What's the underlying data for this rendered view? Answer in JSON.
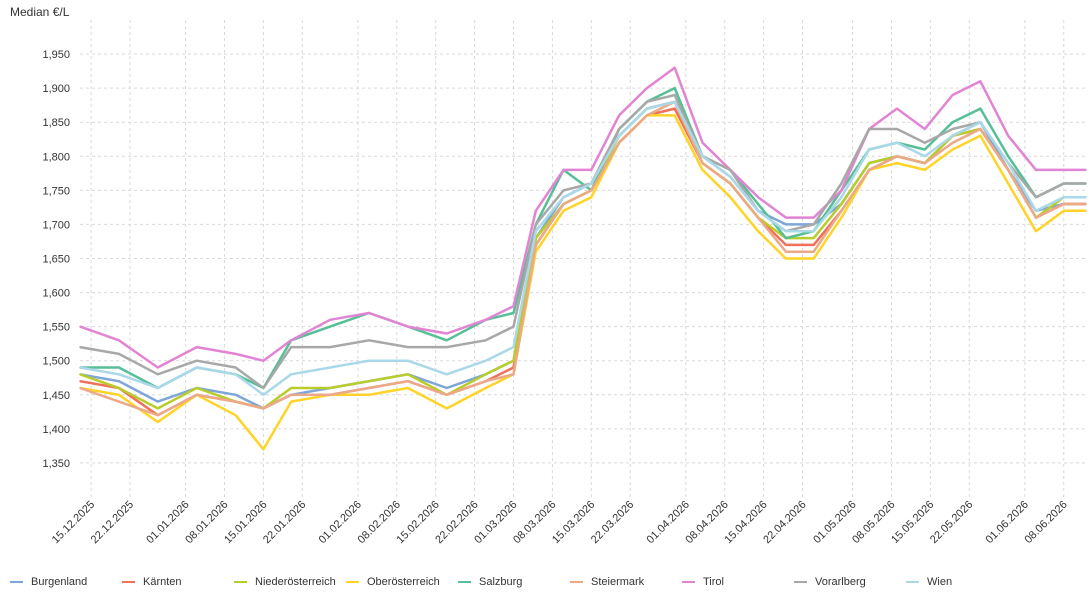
{
  "chart_data": {
    "type": "line",
    "ylabel": "Median €/L",
    "ylim": [
      1.3,
      2.0
    ],
    "yticks": [
      1.35,
      1.4,
      1.45,
      1.5,
      1.55,
      1.6,
      1.65,
      1.7,
      1.75,
      1.8,
      1.85,
      1.9,
      1.95
    ],
    "ytick_labels": [
      "1,350",
      "1,400",
      "1,450",
      "1,500",
      "1,550",
      "1,600",
      "1,650",
      "1,700",
      "1,750",
      "1,800",
      "1,850",
      "1,900",
      "1,950"
    ],
    "xlim": [
      "2025-12-13",
      "2026-06-12"
    ],
    "xticks": [
      "2025-12-15",
      "2025-12-22",
      "2026-01-01",
      "2026-01-08",
      "2026-01-15",
      "2026-01-22",
      "2026-02-01",
      "2026-02-08",
      "2026-02-15",
      "2026-02-22",
      "2026-03-01",
      "2026-03-08",
      "2026-03-15",
      "2026-03-22",
      "2026-04-01",
      "2026-04-08",
      "2026-04-15",
      "2026-04-22",
      "2026-05-01",
      "2026-05-08",
      "2026-05-15",
      "2026-05-22",
      "2026-06-01",
      "2026-06-08"
    ],
    "xtick_labels": [
      "15.12.2025",
      "22.12.2025",
      "01.01.2026",
      "08.01.2026",
      "15.01.2026",
      "22.01.2026",
      "01.02.2026",
      "08.02.2026",
      "15.02.2026",
      "22.02.2026",
      "01.03.2026",
      "08.03.2026",
      "15.03.2026",
      "22.03.2026",
      "01.04.2026",
      "08.04.2026",
      "15.04.2026",
      "22.04.2026",
      "01.05.2026",
      "08.05.2026",
      "15.05.2026",
      "22.05.2026",
      "01.06.2026",
      "08.06.2026"
    ],
    "grid": true,
    "legend_position": "bottom",
    "x": [
      "2025-12-13",
      "2025-12-20",
      "2025-12-27",
      "2026-01-03",
      "2026-01-10",
      "2026-01-15",
      "2026-01-20",
      "2026-01-27",
      "2026-02-03",
      "2026-02-10",
      "2026-02-17",
      "2026-02-24",
      "2026-03-01",
      "2026-03-05",
      "2026-03-10",
      "2026-03-15",
      "2026-03-20",
      "2026-03-25",
      "2026-03-30",
      "2026-04-04",
      "2026-04-09",
      "2026-04-14",
      "2026-04-19",
      "2026-04-24",
      "2026-04-29",
      "2026-05-04",
      "2026-05-09",
      "2026-05-14",
      "2026-05-19",
      "2026-05-24",
      "2026-05-29",
      "2026-06-03",
      "2026-06-08",
      "2026-06-12"
    ],
    "series": [
      {
        "name": "Burgenland",
        "color": "#7ea6d8",
        "values": [
          1.48,
          1.47,
          1.44,
          1.46,
          1.45,
          1.43,
          1.45,
          1.46,
          1.47,
          1.48,
          1.46,
          1.48,
          1.5,
          1.68,
          1.74,
          1.76,
          1.83,
          1.87,
          1.88,
          1.8,
          1.77,
          1.72,
          1.7,
          1.7,
          1.73,
          1.79,
          1.8,
          1.79,
          1.83,
          1.85,
          1.78,
          1.72,
          1.73,
          1.73
        ]
      },
      {
        "name": "Kärnten",
        "color": "#f0705a",
        "values": [
          1.47,
          1.46,
          1.42,
          1.45,
          1.44,
          1.43,
          1.45,
          1.45,
          1.46,
          1.47,
          1.45,
          1.47,
          1.49,
          1.67,
          1.73,
          1.75,
          1.82,
          1.86,
          1.87,
          1.79,
          1.76,
          1.71,
          1.67,
          1.67,
          1.72,
          1.78,
          1.8,
          1.79,
          1.83,
          1.84,
          1.78,
          1.71,
          1.73,
          1.73
        ]
      },
      {
        "name": "Niederösterreich",
        "color": "#b8cc2a",
        "values": [
          1.48,
          1.46,
          1.43,
          1.46,
          1.44,
          1.43,
          1.46,
          1.46,
          1.47,
          1.48,
          1.45,
          1.48,
          1.5,
          1.68,
          1.73,
          1.75,
          1.83,
          1.87,
          1.88,
          1.79,
          1.76,
          1.71,
          1.68,
          1.68,
          1.73,
          1.79,
          1.8,
          1.79,
          1.83,
          1.84,
          1.78,
          1.71,
          1.74,
          1.74
        ]
      },
      {
        "name": "Oberösterreich",
        "color": "#ffd327",
        "values": [
          1.46,
          1.45,
          1.41,
          1.45,
          1.42,
          1.37,
          1.44,
          1.45,
          1.45,
          1.46,
          1.43,
          1.46,
          1.48,
          1.66,
          1.72,
          1.74,
          1.82,
          1.86,
          1.86,
          1.78,
          1.74,
          1.69,
          1.65,
          1.65,
          1.71,
          1.78,
          1.79,
          1.78,
          1.81,
          1.83,
          1.76,
          1.69,
          1.72,
          1.72
        ]
      },
      {
        "name": "Salzburg",
        "color": "#55bf95",
        "values": [
          1.49,
          1.49,
          1.46,
          1.49,
          1.48,
          1.46,
          1.53,
          1.55,
          1.57,
          1.55,
          1.53,
          1.56,
          1.57,
          1.7,
          1.78,
          1.75,
          1.84,
          1.88,
          1.9,
          1.8,
          1.78,
          1.73,
          1.68,
          1.69,
          1.75,
          1.81,
          1.82,
          1.81,
          1.85,
          1.87,
          1.8,
          1.74,
          1.76,
          1.76
        ]
      },
      {
        "name": "Steiermark",
        "color": "#eba987",
        "values": [
          1.46,
          1.44,
          1.42,
          1.45,
          1.44,
          1.43,
          1.45,
          1.45,
          1.46,
          1.47,
          1.45,
          1.47,
          1.48,
          1.67,
          1.73,
          1.75,
          1.82,
          1.86,
          1.88,
          1.79,
          1.76,
          1.71,
          1.66,
          1.66,
          1.72,
          1.78,
          1.8,
          1.79,
          1.82,
          1.84,
          1.78,
          1.71,
          1.73,
          1.73
        ]
      },
      {
        "name": "Tirol",
        "color": "#e184d3",
        "values": [
          1.55,
          1.53,
          1.49,
          1.52,
          1.51,
          1.5,
          1.53,
          1.56,
          1.57,
          1.55,
          1.54,
          1.56,
          1.58,
          1.72,
          1.78,
          1.78,
          1.86,
          1.9,
          1.93,
          1.82,
          1.78,
          1.74,
          1.71,
          1.71,
          1.75,
          1.84,
          1.87,
          1.84,
          1.89,
          1.91,
          1.83,
          1.78,
          1.78,
          1.78
        ]
      },
      {
        "name": "Vorarlberg",
        "color": "#a8a8a8",
        "values": [
          1.52,
          1.51,
          1.48,
          1.5,
          1.49,
          1.46,
          1.52,
          1.52,
          1.53,
          1.52,
          1.52,
          1.53,
          1.55,
          1.7,
          1.75,
          1.76,
          1.84,
          1.88,
          1.89,
          1.8,
          1.78,
          1.72,
          1.69,
          1.7,
          1.76,
          1.84,
          1.84,
          1.82,
          1.84,
          1.85,
          1.79,
          1.74,
          1.76,
          1.76
        ]
      },
      {
        "name": "Wien",
        "color": "#a9d9e8",
        "values": [
          1.49,
          1.48,
          1.46,
          1.49,
          1.48,
          1.45,
          1.48,
          1.49,
          1.5,
          1.5,
          1.48,
          1.5,
          1.52,
          1.69,
          1.74,
          1.76,
          1.83,
          1.87,
          1.88,
          1.8,
          1.77,
          1.72,
          1.69,
          1.69,
          1.74,
          1.81,
          1.82,
          1.8,
          1.83,
          1.85,
          1.79,
          1.72,
          1.74,
          1.74
        ]
      }
    ]
  },
  "legend": {
    "items": [
      {
        "label": "Burgenland",
        "color": "#7ea6d8"
      },
      {
        "label": "Kärnten",
        "color": "#f0705a"
      },
      {
        "label": "Niederösterreich",
        "color": "#b8cc2a"
      },
      {
        "label": "Oberösterreich",
        "color": "#ffd327"
      },
      {
        "label": "Salzburg",
        "color": "#55bf95"
      },
      {
        "label": "Steiermark",
        "color": "#eba987"
      },
      {
        "label": "Tirol",
        "color": "#e184d3"
      },
      {
        "label": "Vorarlberg",
        "color": "#a8a8a8"
      },
      {
        "label": "Wien",
        "color": "#a9d9e8"
      }
    ]
  }
}
